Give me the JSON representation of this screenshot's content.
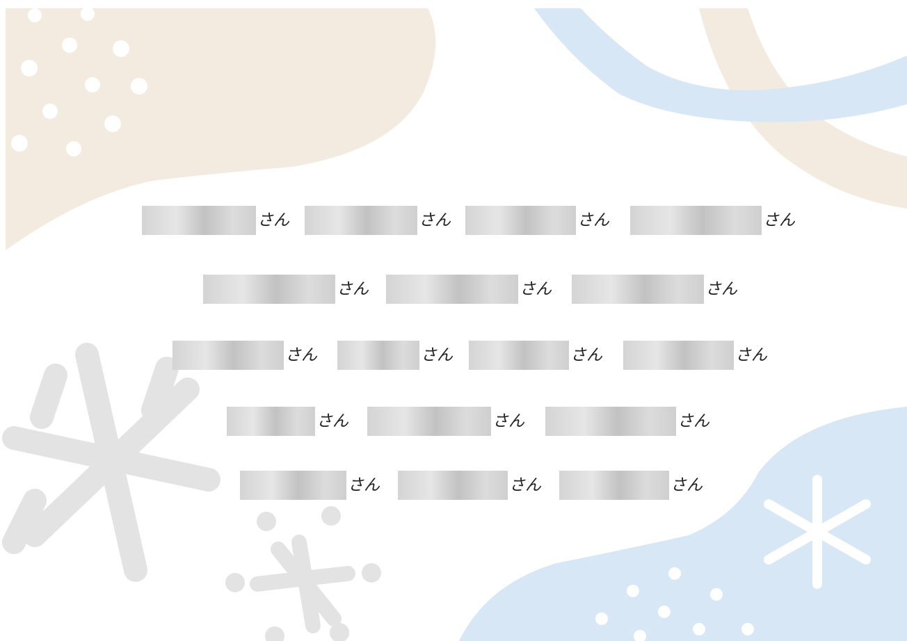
{
  "rows": [
    [
      {
        "suffix": "さん"
      },
      {
        "suffix": "さん"
      },
      {
        "suffix": "さん"
      },
      {
        "suffix": "さん"
      }
    ],
    [
      {
        "suffix": "さん"
      },
      {
        "suffix": "さん"
      },
      {
        "suffix": "さん"
      }
    ],
    [
      {
        "suffix": "さん"
      },
      {
        "suffix": "さん"
      },
      {
        "suffix": "さん"
      },
      {
        "suffix": "さん"
      }
    ],
    [
      {
        "suffix": "さん"
      },
      {
        "suffix": "さん"
      },
      {
        "suffix": "さん"
      }
    ],
    [
      {
        "suffix": "さん"
      },
      {
        "suffix": "さん"
      },
      {
        "suffix": "さん"
      }
    ]
  ]
}
